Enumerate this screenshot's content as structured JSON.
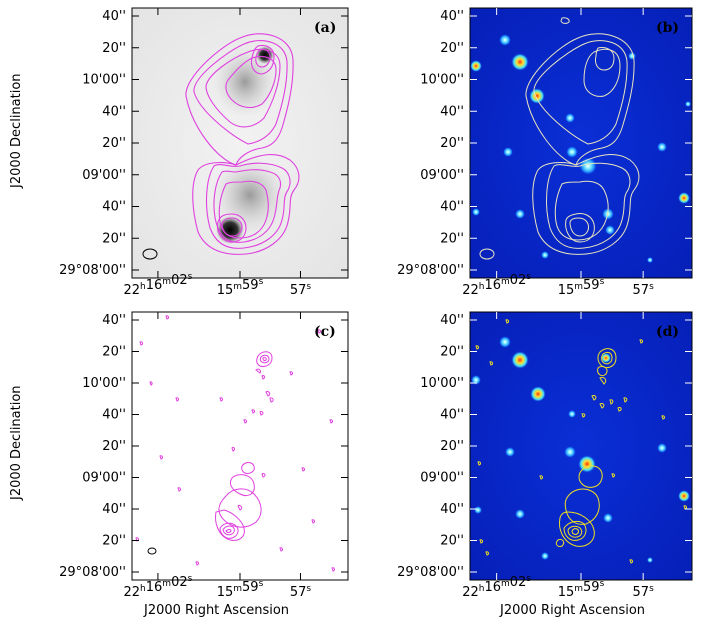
{
  "figure": {
    "ylabel": "J2000 Declination",
    "xlabel": "J2000 Right Ascension",
    "ra_ticks": [
      {
        "h": "22",
        "hu": "h",
        "m": "16",
        "mu": "m",
        "s": "02",
        "su": "s"
      },
      {
        "m": "15",
        "mu": "m",
        "s": "59",
        "su": "s"
      },
      {
        "s": "57",
        "su": "s"
      }
    ],
    "dec_ticks": [
      "40''",
      "20''",
      "10'00''",
      "40''",
      "20''",
      "09'00''",
      "40''",
      "20''",
      "29°08'00''"
    ],
    "panels": [
      {
        "label": "(a)",
        "style": "greyscale",
        "contour_color": "#e040e0"
      },
      {
        "label": "(b)",
        "style": "optical",
        "contour_color": "#e8e4c0"
      },
      {
        "label": "(c)",
        "style": "blank",
        "contour_color": "#e040e0"
      },
      {
        "label": "(d)",
        "style": "optical",
        "contour_color": "#f0e020"
      }
    ]
  }
}
